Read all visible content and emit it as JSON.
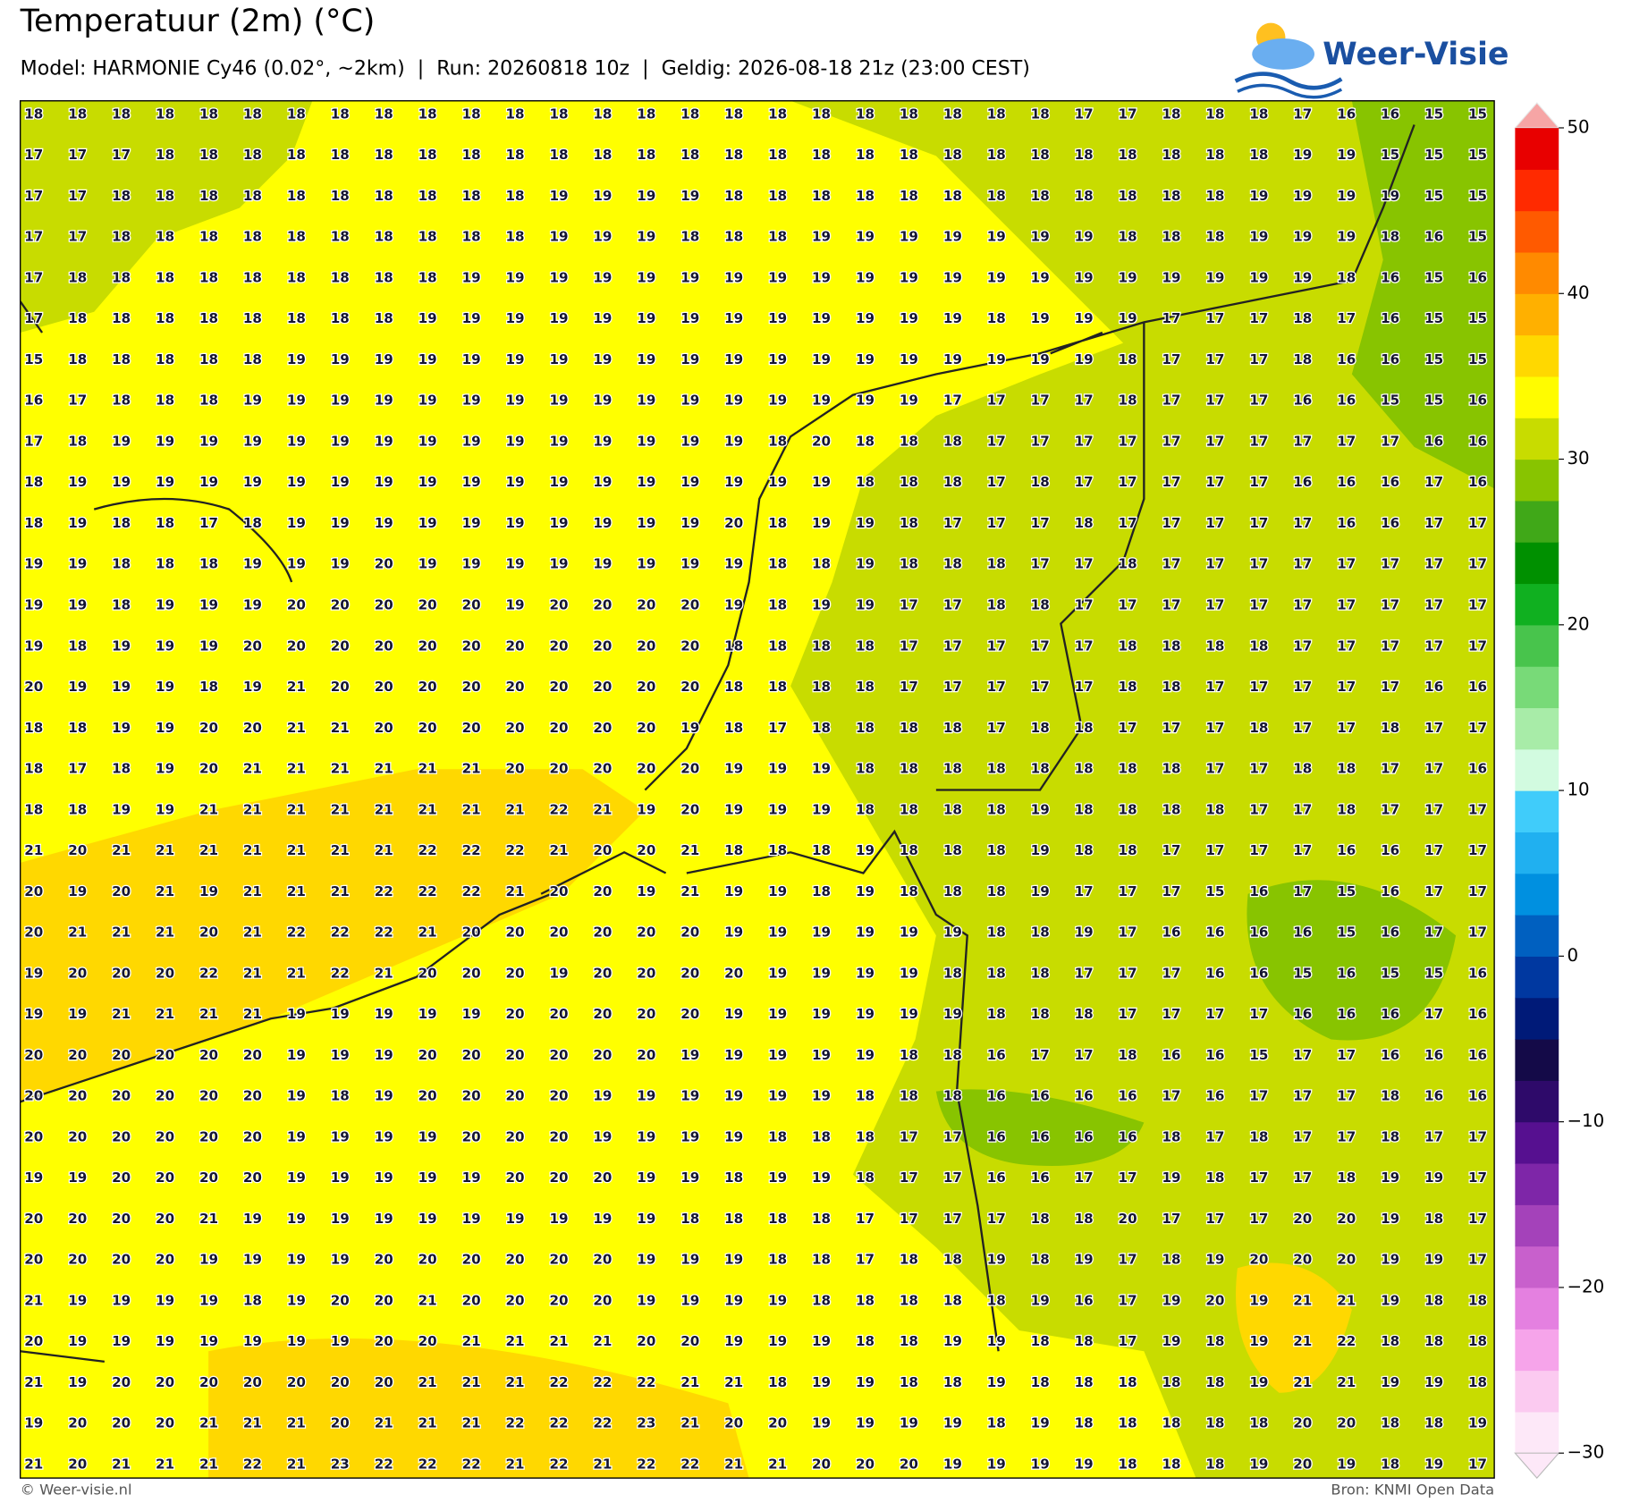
{
  "header": {
    "title": "Temperatuur (2m) (°C)",
    "subtitle": "Model: HARMONIE Cy46 (0.02°, ~2km)  |  Run: 20260818 10z  |  Geldig: 2026-08-18 21z (23:00 CEST)"
  },
  "logo": "Weer-Visie",
  "grid": {
    "rows": [
      [
        18,
        18,
        18,
        18,
        18,
        18,
        18,
        18,
        18,
        18,
        18,
        18,
        18,
        18,
        18,
        18,
        18,
        18,
        18,
        18,
        18,
        18,
        18,
        18,
        17,
        17,
        18,
        18,
        18,
        17,
        16,
        16,
        15,
        15
      ],
      [
        17,
        17,
        17,
        18,
        18,
        18,
        18,
        18,
        18,
        18,
        18,
        18,
        18,
        18,
        18,
        18,
        18,
        18,
        18,
        18,
        18,
        18,
        18,
        18,
        18,
        18,
        18,
        18,
        18,
        19,
        19,
        15,
        15,
        15
      ],
      [
        17,
        17,
        18,
        18,
        18,
        18,
        18,
        18,
        18,
        18,
        18,
        18,
        19,
        19,
        19,
        19,
        18,
        18,
        18,
        18,
        18,
        18,
        18,
        18,
        18,
        18,
        18,
        18,
        19,
        19,
        19,
        19,
        15,
        15
      ],
      [
        17,
        17,
        18,
        18,
        18,
        18,
        18,
        18,
        18,
        18,
        18,
        18,
        19,
        19,
        19,
        18,
        18,
        18,
        19,
        19,
        19,
        19,
        19,
        19,
        19,
        18,
        18,
        18,
        19,
        19,
        19,
        18,
        16,
        15
      ],
      [
        17,
        18,
        18,
        18,
        18,
        18,
        18,
        18,
        18,
        18,
        19,
        19,
        19,
        19,
        19,
        19,
        19,
        19,
        19,
        19,
        19,
        19,
        19,
        19,
        19,
        19,
        19,
        19,
        19,
        19,
        18,
        16,
        15,
        16
      ],
      [
        17,
        18,
        18,
        18,
        18,
        18,
        18,
        18,
        18,
        19,
        19,
        19,
        19,
        19,
        19,
        19,
        19,
        19,
        19,
        19,
        19,
        19,
        18,
        19,
        19,
        19,
        17,
        17,
        17,
        18,
        17,
        16,
        15,
        15
      ],
      [
        15,
        18,
        18,
        18,
        18,
        18,
        19,
        19,
        19,
        19,
        19,
        19,
        19,
        19,
        19,
        19,
        19,
        19,
        19,
        19,
        19,
        19,
        19,
        19,
        19,
        18,
        17,
        17,
        17,
        18,
        16,
        16,
        15,
        15
      ],
      [
        16,
        17,
        18,
        18,
        18,
        19,
        19,
        19,
        19,
        19,
        19,
        19,
        19,
        19,
        19,
        19,
        19,
        19,
        19,
        19,
        19,
        17,
        17,
        17,
        17,
        18,
        17,
        17,
        17,
        16,
        16,
        15,
        15,
        16
      ],
      [
        17,
        18,
        19,
        19,
        19,
        19,
        19,
        19,
        19,
        19,
        19,
        19,
        19,
        19,
        19,
        19,
        19,
        18,
        20,
        18,
        18,
        18,
        17,
        17,
        17,
        17,
        17,
        17,
        17,
        17,
        17,
        17,
        16,
        16
      ],
      [
        18,
        19,
        19,
        19,
        19,
        19,
        19,
        19,
        19,
        19,
        19,
        19,
        19,
        19,
        19,
        19,
        19,
        19,
        19,
        18,
        18,
        18,
        17,
        18,
        17,
        17,
        17,
        17,
        17,
        16,
        16,
        16,
        17,
        16
      ],
      [
        18,
        19,
        18,
        18,
        17,
        18,
        19,
        19,
        19,
        19,
        19,
        19,
        19,
        19,
        19,
        19,
        20,
        18,
        19,
        19,
        18,
        17,
        17,
        17,
        18,
        17,
        17,
        17,
        17,
        17,
        16,
        16,
        17,
        17
      ],
      [
        19,
        19,
        18,
        18,
        18,
        19,
        19,
        19,
        20,
        19,
        19,
        19,
        19,
        19,
        19,
        19,
        19,
        18,
        18,
        19,
        18,
        18,
        18,
        17,
        17,
        18,
        17,
        17,
        17,
        17,
        17,
        17,
        17,
        17
      ],
      [
        19,
        19,
        18,
        19,
        19,
        19,
        20,
        20,
        20,
        20,
        20,
        19,
        20,
        20,
        20,
        20,
        19,
        18,
        19,
        19,
        17,
        17,
        18,
        18,
        17,
        17,
        17,
        17,
        17,
        17,
        17,
        17,
        17,
        17
      ],
      [
        19,
        18,
        19,
        19,
        19,
        20,
        20,
        20,
        20,
        20,
        20,
        20,
        20,
        20,
        20,
        20,
        18,
        18,
        18,
        18,
        17,
        17,
        17,
        17,
        17,
        18,
        18,
        18,
        18,
        17,
        17,
        17,
        17,
        17
      ],
      [
        20,
        19,
        19,
        19,
        18,
        19,
        21,
        20,
        20,
        20,
        20,
        20,
        20,
        20,
        20,
        20,
        18,
        18,
        18,
        18,
        17,
        17,
        17,
        17,
        17,
        18,
        18,
        17,
        17,
        17,
        17,
        17,
        16,
        16
      ],
      [
        18,
        18,
        19,
        19,
        20,
        20,
        21,
        21,
        20,
        20,
        20,
        20,
        20,
        20,
        20,
        19,
        18,
        17,
        18,
        18,
        18,
        18,
        17,
        18,
        18,
        17,
        17,
        17,
        18,
        17,
        17,
        18,
        17,
        17
      ],
      [
        18,
        17,
        18,
        19,
        20,
        21,
        21,
        21,
        21,
        21,
        21,
        20,
        20,
        20,
        20,
        20,
        19,
        19,
        19,
        18,
        18,
        18,
        18,
        18,
        18,
        18,
        18,
        17,
        17,
        18,
        18,
        17,
        17,
        16
      ],
      [
        18,
        18,
        19,
        19,
        21,
        21,
        21,
        21,
        21,
        21,
        21,
        21,
        22,
        21,
        19,
        20,
        19,
        19,
        19,
        18,
        18,
        18,
        18,
        19,
        18,
        18,
        18,
        18,
        17,
        17,
        18,
        17,
        17,
        17
      ],
      [
        21,
        20,
        21,
        21,
        21,
        21,
        21,
        21,
        21,
        22,
        22,
        22,
        21,
        20,
        20,
        21,
        18,
        18,
        18,
        19,
        18,
        18,
        18,
        19,
        18,
        18,
        17,
        17,
        17,
        17,
        16,
        16,
        17,
        17
      ],
      [
        20,
        19,
        20,
        21,
        19,
        21,
        21,
        21,
        22,
        22,
        22,
        21,
        20,
        20,
        19,
        21,
        19,
        19,
        18,
        19,
        18,
        18,
        18,
        19,
        17,
        17,
        17,
        15,
        16,
        17,
        15,
        16,
        17,
        17
      ],
      [
        20,
        21,
        21,
        21,
        20,
        21,
        22,
        22,
        22,
        21,
        20,
        20,
        20,
        20,
        20,
        20,
        19,
        19,
        19,
        19,
        19,
        19,
        18,
        18,
        19,
        17,
        16,
        16,
        16,
        16,
        15,
        16,
        17,
        17
      ],
      [
        19,
        20,
        20,
        20,
        22,
        21,
        21,
        22,
        21,
        20,
        20,
        20,
        19,
        20,
        20,
        20,
        20,
        19,
        19,
        19,
        19,
        18,
        18,
        18,
        17,
        17,
        17,
        16,
        16,
        15,
        16,
        15,
        15,
        16
      ],
      [
        19,
        19,
        21,
        21,
        21,
        21,
        19,
        19,
        19,
        19,
        19,
        20,
        20,
        20,
        20,
        20,
        19,
        19,
        19,
        19,
        19,
        19,
        18,
        18,
        18,
        17,
        17,
        17,
        17,
        16,
        16,
        16,
        17,
        16
      ],
      [
        20,
        20,
        20,
        20,
        20,
        20,
        19,
        19,
        19,
        20,
        20,
        20,
        20,
        20,
        20,
        19,
        19,
        19,
        19,
        19,
        18,
        18,
        16,
        17,
        17,
        18,
        16,
        16,
        15,
        17,
        17,
        16,
        16,
        16
      ],
      [
        20,
        20,
        20,
        20,
        20,
        20,
        19,
        18,
        19,
        20,
        20,
        20,
        20,
        19,
        19,
        19,
        19,
        19,
        19,
        18,
        18,
        18,
        16,
        16,
        16,
        16,
        17,
        16,
        17,
        17,
        17,
        18,
        16,
        16
      ],
      [
        20,
        20,
        20,
        20,
        20,
        20,
        19,
        19,
        19,
        19,
        20,
        20,
        20,
        19,
        19,
        19,
        19,
        18,
        18,
        18,
        17,
        17,
        16,
        16,
        16,
        16,
        18,
        17,
        18,
        17,
        17,
        18,
        17,
        17
      ],
      [
        19,
        19,
        20,
        20,
        20,
        20,
        19,
        19,
        19,
        19,
        19,
        20,
        20,
        20,
        19,
        19,
        18,
        19,
        19,
        18,
        17,
        17,
        16,
        16,
        17,
        17,
        19,
        18,
        17,
        17,
        18,
        19,
        19,
        17
      ],
      [
        20,
        20,
        20,
        20,
        21,
        19,
        19,
        19,
        19,
        19,
        19,
        19,
        19,
        19,
        19,
        18,
        18,
        18,
        18,
        17,
        17,
        17,
        17,
        18,
        18,
        20,
        17,
        17,
        17,
        20,
        20,
        19,
        18,
        17
      ],
      [
        20,
        20,
        20,
        20,
        19,
        19,
        19,
        19,
        20,
        20,
        20,
        20,
        20,
        20,
        19,
        19,
        19,
        18,
        18,
        17,
        18,
        18,
        19,
        18,
        19,
        17,
        18,
        19,
        20,
        20,
        20,
        19,
        19,
        17
      ],
      [
        21,
        19,
        19,
        19,
        19,
        18,
        19,
        20,
        20,
        21,
        20,
        20,
        20,
        20,
        19,
        19,
        19,
        19,
        18,
        18,
        18,
        18,
        18,
        19,
        16,
        17,
        19,
        20,
        19,
        21,
        21,
        19,
        18,
        18
      ],
      [
        20,
        19,
        19,
        19,
        19,
        19,
        19,
        19,
        20,
        20,
        21,
        21,
        21,
        21,
        20,
        20,
        19,
        19,
        19,
        18,
        18,
        19,
        19,
        18,
        18,
        17,
        19,
        18,
        19,
        21,
        22,
        18,
        18,
        18
      ],
      [
        21,
        19,
        20,
        20,
        20,
        20,
        20,
        20,
        20,
        21,
        21,
        21,
        22,
        22,
        22,
        21,
        21,
        18,
        19,
        19,
        18,
        18,
        19,
        18,
        18,
        18,
        18,
        18,
        19,
        21,
        21,
        19,
        19,
        18
      ],
      [
        19,
        20,
        20,
        20,
        21,
        21,
        21,
        20,
        21,
        21,
        21,
        22,
        22,
        22,
        23,
        21,
        20,
        20,
        19,
        19,
        19,
        19,
        18,
        19,
        18,
        18,
        18,
        18,
        18,
        20,
        20,
        18,
        18,
        19
      ],
      [
        21,
        20,
        21,
        21,
        21,
        22,
        21,
        23,
        22,
        22,
        22,
        21,
        22,
        21,
        22,
        22,
        21,
        21,
        20,
        20,
        20,
        19,
        19,
        19,
        19,
        18,
        18,
        18,
        19,
        20,
        19,
        18,
        19,
        17
      ]
    ]
  },
  "colorbar": {
    "ylim": [
      -30,
      50
    ],
    "ticks": [
      50,
      40,
      30,
      20,
      10,
      0,
      {
        "value": -10,
        "label": "−10"
      },
      {
        "value": -20,
        "label": "−20"
      },
      {
        "value": -30,
        "label": "−30"
      }
    ],
    "colors": [
      "#fde8f8",
      "#fbcaf0",
      "#f6a4ea",
      "#e480e0",
      "#c860cc",
      "#a442ba",
      "#7e26a8",
      "#561090",
      "#2e0a6a",
      "#140a48",
      "#001a78",
      "#0038a0",
      "#0060c0",
      "#0090e0",
      "#20b0f0",
      "#40ccfa",
      "#d2fbe0",
      "#a8eca8",
      "#78da78",
      "#48c44c",
      "#10b020",
      "#009000",
      "#40a818",
      "#88c400",
      "#c8dc00",
      "#fffc00",
      "#ffd800",
      "#ffb000",
      "#ff8a00",
      "#ff5a00",
      "#ff2a00",
      "#e80000"
    ]
  },
  "footer": {
    "left": "© Weer-visie.nl",
    "right": "Bron: KNMI Open Data"
  }
}
